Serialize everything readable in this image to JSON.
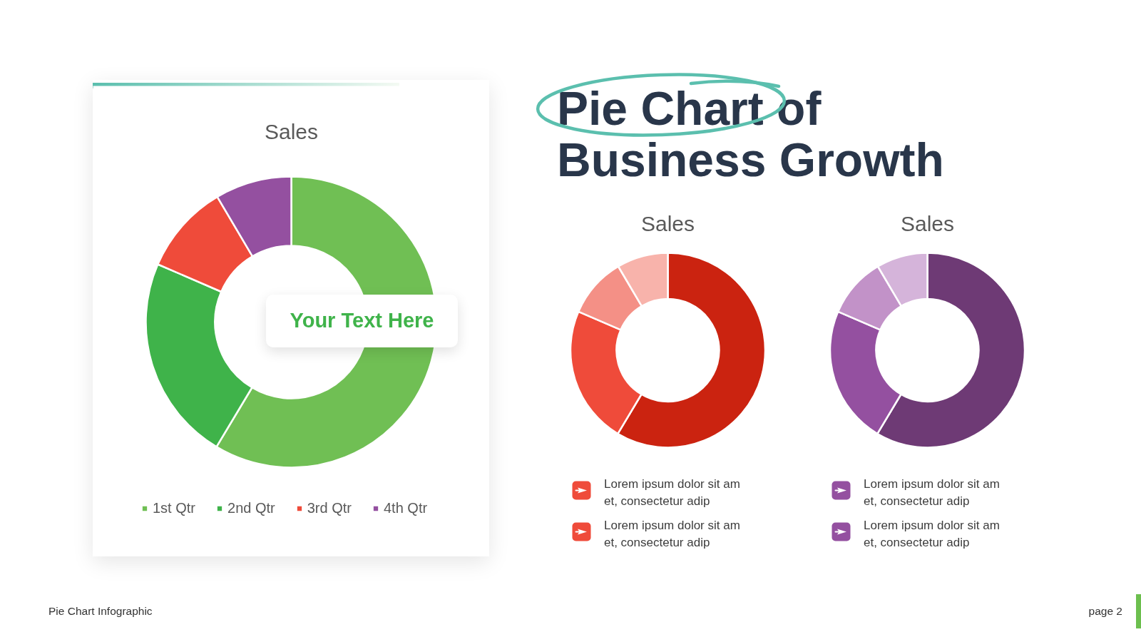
{
  "chart_data": [
    {
      "type": "donut",
      "title": "Sales",
      "categories": [
        "1st Qtr",
        "2nd Qtr",
        "3rd Qtr",
        "4th Qtr"
      ],
      "values": [
        58.6,
        22.9,
        10.0,
        8.5
      ],
      "colors": [
        "#70bf54",
        "#3fb34a",
        "#ef4b3a",
        "#9450a0"
      ],
      "legend": "bottom",
      "annotations": [
        "Your Text Here"
      ]
    },
    {
      "type": "donut",
      "title": "Sales",
      "categories": [
        null,
        null,
        null,
        null
      ],
      "values": [
        58.6,
        22.9,
        10.0,
        8.5
      ],
      "colors": [
        "#cb2310",
        "#ef4b3a",
        "#f49086",
        "#f8b3ab"
      ],
      "annotations": [
        "Lorem ipsum dolor sit am et, consectetur adip",
        "Lorem ipsum dolor sit am et, consectetur adip"
      ]
    },
    {
      "type": "donut",
      "title": "Sales",
      "categories": [
        null,
        null,
        null,
        null
      ],
      "values": [
        58.6,
        22.9,
        10.0,
        8.5
      ],
      "colors": [
        "#6e3a75",
        "#9450a0",
        "#c292c8",
        "#d5b4da"
      ],
      "annotations": [
        "Lorem ipsum dolor sit am et, consectetur adip",
        "Lorem ipsum dolor sit am et, consectetur adip"
      ]
    },
    {
      "type": "other",
      "title": "Pie Chart of Business Growth",
      "annotations": [
        "Pie Chart Infographic",
        "page 2"
      ]
    }
  ]
}
